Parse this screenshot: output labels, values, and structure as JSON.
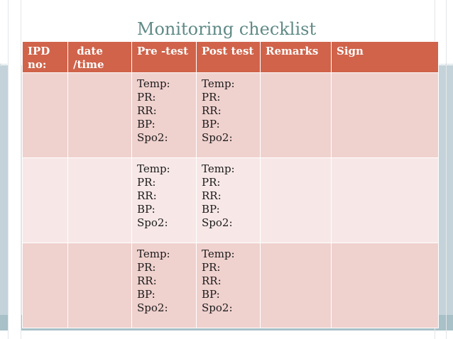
{
  "title": "Monitoring checklist",
  "table": {
    "headers": [
      "IPD\nno:",
      " date\n/time",
      "Pre -test",
      "Post test",
      "Remarks",
      "Sign"
    ],
    "vitals": [
      "Temp:",
      "PR:",
      "RR:",
      "BP:",
      "Spo2:"
    ],
    "rows": 3
  },
  "colors": {
    "header_bg": "#d0634a",
    "row_odd": "#efd1ce",
    "row_even": "#f7e8e7",
    "title": "#5f8a86"
  }
}
